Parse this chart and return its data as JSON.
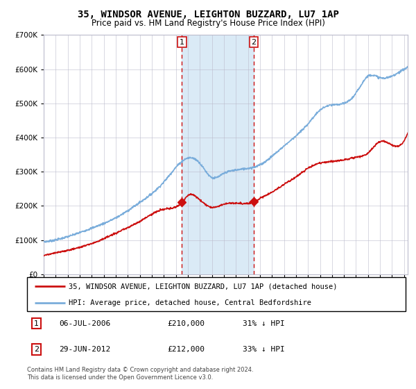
{
  "title": "35, WINDSOR AVENUE, LEIGHTON BUZZARD, LU7 1AP",
  "subtitle": "Price paid vs. HM Land Registry's House Price Index (HPI)",
  "legend_line1": "35, WINDSOR AVENUE, LEIGHTON BUZZARD, LU7 1AP (detached house)",
  "legend_line2": "HPI: Average price, detached house, Central Bedfordshire",
  "footer1": "Contains HM Land Registry data © Crown copyright and database right 2024.",
  "footer2": "This data is licensed under the Open Government Licence v3.0.",
  "sale1_date": "06-JUL-2006",
  "sale1_price": "£210,000",
  "sale1_hpi": "31% ↓ HPI",
  "sale2_date": "29-JUN-2012",
  "sale2_price": "£212,000",
  "sale2_hpi": "33% ↓ HPI",
  "sale1_x": 2006.51,
  "sale1_y": 210000,
  "sale2_x": 2012.49,
  "sale2_y": 212000,
  "hpi_color": "#7aaddb",
  "price_color": "#cc1111",
  "grid_color": "#bbbbcc",
  "shade_color": "#daeaf6",
  "ylim": [
    0,
    700000
  ],
  "xlim": [
    1995.0,
    2025.3
  ]
}
